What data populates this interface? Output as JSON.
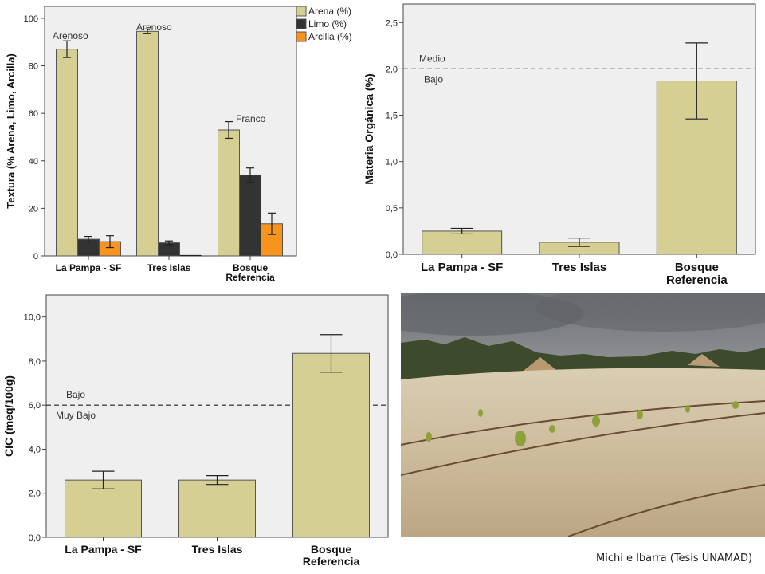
{
  "chart_data": [
    {
      "type": "bar",
      "ylabel": "Textura (% Arena, Limo, Arcilla)",
      "ylim": [
        0,
        105
      ],
      "yticks": [
        0,
        20,
        40,
        60,
        80,
        100
      ],
      "categories": [
        "La Pampa - SF",
        "Tres Islas",
        "Bosque Referencia"
      ],
      "series": [
        {
          "name": "Arena (%)",
          "color": "#d6cf94",
          "values": [
            87,
            94.5,
            53
          ],
          "error": [
            3.5,
            1,
            3.5
          ]
        },
        {
          "name": "Limo (%)",
          "color": "#333333",
          "values": [
            7,
            5.5,
            34
          ],
          "error": [
            1.2,
            0.8,
            3
          ]
        },
        {
          "name": "Arcilla (%)",
          "color": "#f7941d",
          "values": [
            6,
            0,
            13.5
          ],
          "error": [
            2.5,
            0,
            4.5
          ]
        }
      ],
      "annotations": [
        "Arenoso",
        "Arenoso",
        "Franco"
      ],
      "legend": "top-right"
    },
    {
      "type": "bar",
      "ylabel": "Materia Orgánica (%)",
      "ylim": [
        0,
        2.7
      ],
      "yticks": [
        "0,0",
        "0,5",
        "1,0",
        "1,5",
        "2,0",
        "2,5"
      ],
      "categories": [
        "La Pampa - SF",
        "Tres Islas",
        "Bosque Referencia"
      ],
      "values": [
        0.25,
        0.13,
        1.87
      ],
      "error": [
        0.03,
        0.045,
        0.41
      ],
      "color": "#d6cf94",
      "reference_line": {
        "value": 2.0,
        "label_above": "Medio",
        "label_below": "Bajo"
      }
    },
    {
      "type": "bar",
      "ylabel": "CIC (meq/100g)",
      "ylim": [
        0,
        11
      ],
      "yticks": [
        "0,0",
        "2,0",
        "4,0",
        "6,0",
        "8,0",
        "10,0"
      ],
      "categories": [
        "La Pampa - SF",
        "Tres Islas",
        "Bosque Referencia"
      ],
      "values": [
        2.6,
        2.6,
        8.35
      ],
      "error": [
        0.4,
        0.2,
        0.85
      ],
      "color": "#d6cf94",
      "reference_line": {
        "value": 6.0,
        "label_above": "Bajo",
        "label_below": "Muy Bajo"
      }
    }
  ],
  "credit": "Michi e Ibarra (Tesis UNAMAD)",
  "colors": {
    "plot_background": "#efefef",
    "bar": "#d6cf94",
    "limo": "#333333",
    "arcilla": "#f7941d"
  }
}
